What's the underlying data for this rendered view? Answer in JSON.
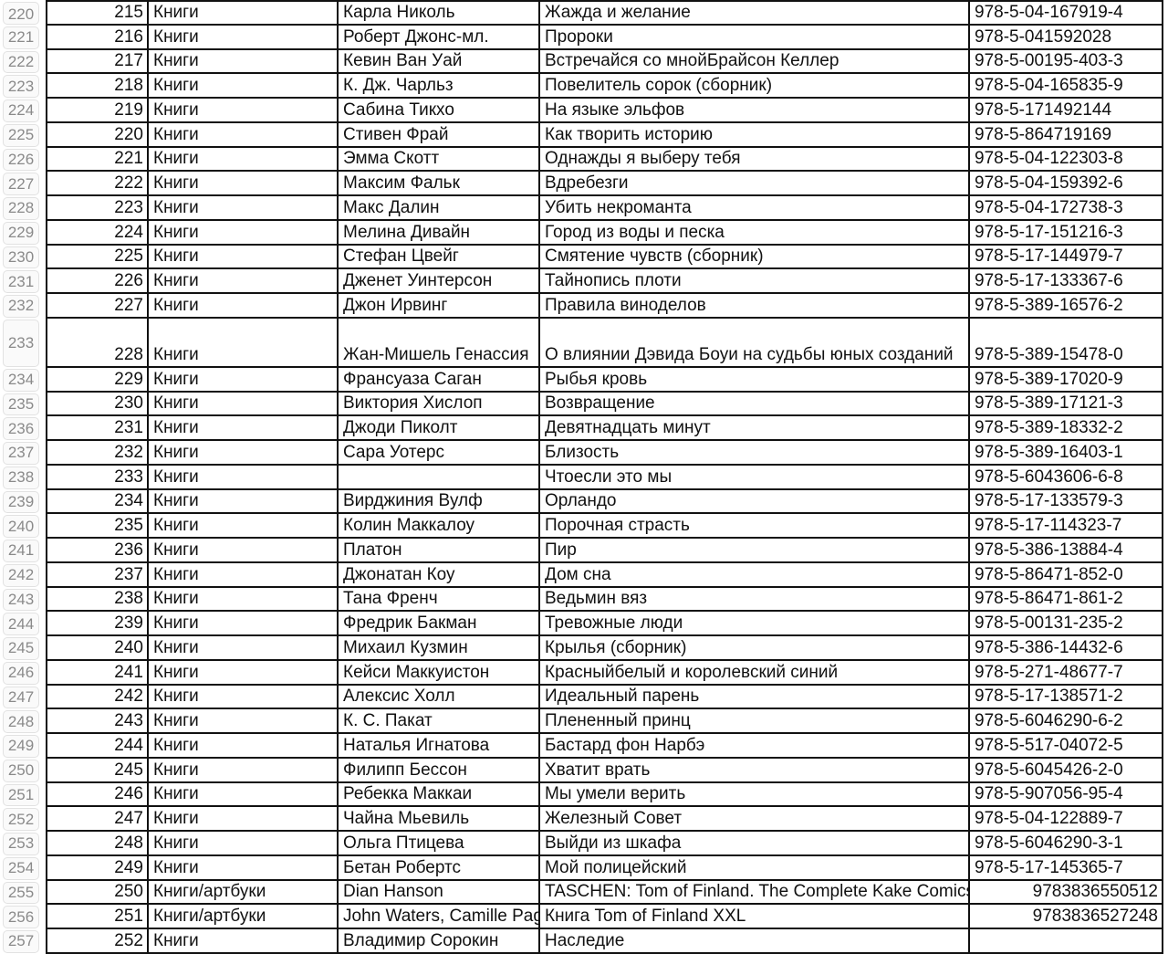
{
  "spreadsheet": {
    "rows": [
      {
        "num": "220",
        "cells": [
          "215",
          "Книги",
          "Карла Николь",
          "Жажда и желание",
          "978-5-04-167919-4"
        ]
      },
      {
        "num": "221",
        "cells": [
          "216",
          "Книги",
          "Роберт Джонс-мл.",
          "Пророки",
          "978-5-041592028"
        ]
      },
      {
        "num": "222",
        "cells": [
          "217",
          "Книги",
          "Кевин Ван Уай",
          "Встречайся со мнойБрайсон Келлер",
          "978-5-00195-403-3"
        ]
      },
      {
        "num": "223",
        "cells": [
          "218",
          "Книги",
          "К. Дж. Чарльз",
          "Повелитель сорок (сборник)",
          "978-5-04-165835-9"
        ]
      },
      {
        "num": "224",
        "cells": [
          "219",
          "Книги",
          "Сабина Тикхо",
          "На языке эльфов",
          "978-5-171492144"
        ]
      },
      {
        "num": "225",
        "cells": [
          "220",
          "Книги",
          "Стивен Фрай",
          "Как творить историю",
          "978-5-864719169"
        ]
      },
      {
        "num": "226",
        "cells": [
          "221",
          "Книги",
          "Эмма Скотт",
          "Однажды я выберу тебя",
          "978-5-04-122303-8"
        ]
      },
      {
        "num": "227",
        "cells": [
          "222",
          "Книги",
          "Максим Фальк",
          "Вдребезги",
          "978-5-04-159392-6"
        ]
      },
      {
        "num": "228",
        "cells": [
          "223",
          "Книги",
          "Макс Далин",
          "Убить некроманта",
          "978-5-04-172738-3"
        ]
      },
      {
        "num": "229",
        "cells": [
          "224",
          "Книги",
          "Мелина Дивайн",
          "Город из воды и песка",
          "978-5-17-151216-3"
        ]
      },
      {
        "num": "230",
        "cells": [
          "225",
          "Книги",
          "Стефан Цвейг",
          "Смятение чувств (сборник)",
          "978-5-17-144979-7"
        ]
      },
      {
        "num": "231",
        "cells": [
          "226",
          "Книги",
          "Дженет Уинтерсон",
          "Тайнопись плоти",
          "978-5-17-133367-6"
        ]
      },
      {
        "num": "232",
        "cells": [
          "227",
          "Книги",
          "Джон Ирвинг",
          "Правила виноделов",
          "978-5-389-16576-2"
        ]
      },
      {
        "num": "233",
        "tall": true,
        "cells": [
          "228",
          "Книги",
          "Жан-Мишель Генассия",
          "О влиянии Дэвида Боуи на судьбы юных созданий",
          "978-5-389-15478-0"
        ]
      },
      {
        "num": "234",
        "cells": [
          "229",
          "Книги",
          "Франсуаза Саган",
          "Рыбья кровь",
          "978-5-389-17020-9"
        ]
      },
      {
        "num": "235",
        "cells": [
          "230",
          "Книги",
          "Виктория Хислоп",
          "Возвращение",
          "978-5-389-17121-3"
        ]
      },
      {
        "num": "236",
        "cells": [
          "231",
          "Книги",
          "Джоди Пиколт",
          "Девятнадцать минут",
          "978-5-389-18332-2"
        ]
      },
      {
        "num": "237",
        "cells": [
          "232",
          "Книги",
          "Сара Уотерс",
          "Близость",
          "978-5-389-16403-1"
        ]
      },
      {
        "num": "238",
        "cells": [
          "233",
          "Книги",
          "",
          "Чтоесли это мы",
          "978-5-6043606-6-8"
        ]
      },
      {
        "num": "239",
        "cells": [
          "234",
          "Книги",
          "Вирджиния Вулф",
          "Орландо",
          "978-5-17-133579-3"
        ]
      },
      {
        "num": "240",
        "cells": [
          "235",
          "Книги",
          "Колин Маккалоу",
          "Порочная страсть",
          "978-5-17-114323-7"
        ]
      },
      {
        "num": "241",
        "cells": [
          "236",
          "Книги",
          "Платон",
          "Пир",
          "978-5-386-13884-4"
        ]
      },
      {
        "num": "242",
        "cells": [
          "237",
          "Книги",
          "Джонатан Коу",
          "Дом сна",
          "978-5-86471-852-0"
        ]
      },
      {
        "num": "243",
        "cells": [
          "238",
          "Книги",
          "Тана Френч",
          "Ведьмин вяз",
          "978-5-86471-861-2"
        ]
      },
      {
        "num": "244",
        "cells": [
          "239",
          "Книги",
          "Фредрик Бакман",
          "Тревожные люди",
          "978-5-00131-235-2"
        ]
      },
      {
        "num": "245",
        "cells": [
          "240",
          "Книги",
          "Михаил Кузмин",
          "Крылья (сборник)",
          "978-5-386-14432-6"
        ]
      },
      {
        "num": "246",
        "cells": [
          "241",
          "Книги",
          "Кейси Маккуистон",
          "Красныйбелый и королевский синий",
          "978-5-271-48677-7"
        ]
      },
      {
        "num": "247",
        "cells": [
          "242",
          "Книги",
          "Алексис Холл",
          "Идеальный парень",
          "978-5-17-138571-2"
        ]
      },
      {
        "num": "248",
        "cells": [
          "243",
          "Книги",
          "К. С. Пакат",
          "Плененный принц",
          "978-5-6046290-6-2"
        ]
      },
      {
        "num": "249",
        "cells": [
          "244",
          "Книги",
          "Наталья Игнатова",
          "Бастард фон Нарбэ",
          "978-5-517-04072-5"
        ]
      },
      {
        "num": "250",
        "cells": [
          "245",
          "Книги",
          "Филипп Бессон",
          "Хватит врать",
          "978-5-6045426-2-0"
        ]
      },
      {
        "num": "251",
        "cells": [
          "246",
          "Книги",
          "Ребекка Маккаи",
          "Мы умели верить",
          "978-5-907056-95-4"
        ]
      },
      {
        "num": "252",
        "cells": [
          "247",
          "Книги",
          "Чайна Мьевиль",
          "Железный Совет",
          "978-5-04-122889-7"
        ]
      },
      {
        "num": "253",
        "cells": [
          "248",
          "Книги",
          "Ольга Птицева",
          "Выйди из шкафа",
          "978-5-6046290-3-1"
        ]
      },
      {
        "num": "254",
        "cells": [
          "249",
          "Книги",
          "Бетан Робертс",
          "Мой полицейский",
          "978-5-17-145365-7"
        ]
      },
      {
        "num": "255",
        "isbn_numeric": true,
        "cells": [
          "250",
          "Книги/артбуки",
          "Dian Hanson",
          "TASCHEN: Tom of Finland. The Complete Kake Comics",
          "9783836550512"
        ]
      },
      {
        "num": "256",
        "isbn_numeric": true,
        "cells": [
          "251",
          "Книги/артбуки",
          "John Waters, Camille Paglia",
          "Книга Tom of Finland XXL",
          "9783836527248"
        ]
      },
      {
        "num": "257",
        "cells": [
          "252",
          "Книги",
          "Владимир Сорокин",
          "Наследие",
          ""
        ]
      }
    ]
  }
}
